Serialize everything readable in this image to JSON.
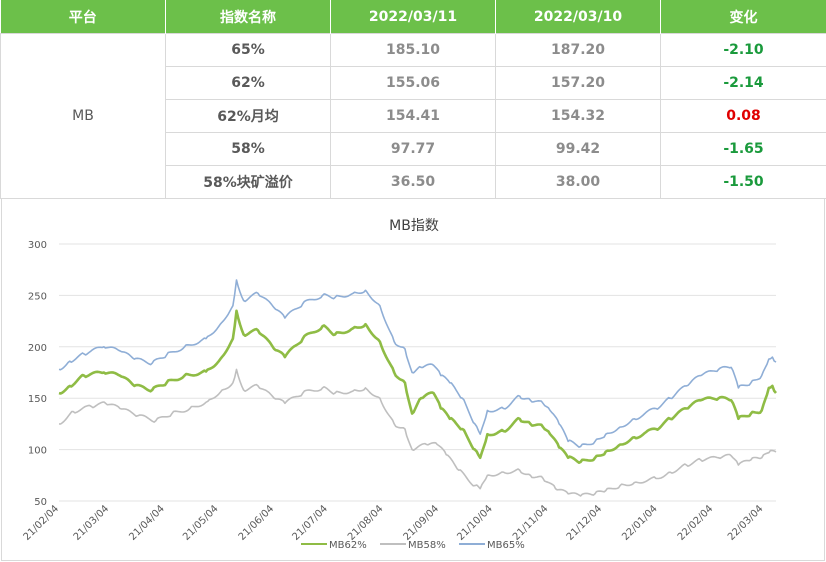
{
  "table": {
    "headers": [
      "平台",
      "指数名称",
      "2022/03/11",
      "2022/03/10",
      "变化"
    ],
    "platform": "MB",
    "rows": [
      {
        "name": "65%",
        "d1": "185.10",
        "d2": "187.20",
        "change": "-2.10",
        "sign": "neg"
      },
      {
        "name": "62%",
        "d1": "155.06",
        "d2": "157.20",
        "change": "-2.14",
        "sign": "neg"
      },
      {
        "name": "62%月均",
        "d1": "154.41",
        "d2": "154.32",
        "change": "0.08",
        "sign": "pos"
      },
      {
        "name": "58%",
        "d1": "97.77",
        "d2": "99.42",
        "change": "-1.65",
        "sign": "neg"
      },
      {
        "name": "58%块矿溢价",
        "d1": "36.50",
        "d2": "38.00",
        "change": "-1.50",
        "sign": "neg"
      }
    ]
  },
  "chart_data": {
    "type": "line",
    "title": "MB指数",
    "xlabel": "",
    "ylabel": "",
    "ylim": [
      50,
      300
    ],
    "yticks": [
      50,
      100,
      150,
      200,
      250,
      300
    ],
    "x_range": [
      "2021-02-04",
      "2022-03-11"
    ],
    "xticks": [
      "21/02/04",
      "21/03/04",
      "21/04/04",
      "21/05/04",
      "21/06/04",
      "21/07/04",
      "21/08/04",
      "21/09/04",
      "21/10/04",
      "21/11/04",
      "21/12/04",
      "22/01/04",
      "22/02/04",
      "22/03/04"
    ],
    "grid": true,
    "legend_position": "bottom",
    "series": [
      {
        "name": "MB62%",
        "color": "#8fbc45",
        "points": [
          [
            "2021-02-04",
            155
          ],
          [
            "2021-02-10",
            162
          ],
          [
            "2021-02-18",
            172
          ],
          [
            "2021-03-01",
            175
          ],
          [
            "2021-03-10",
            172
          ],
          [
            "2021-03-18",
            162
          ],
          [
            "2021-03-28",
            158
          ],
          [
            "2021-04-05",
            165
          ],
          [
            "2021-04-15",
            172
          ],
          [
            "2021-04-27",
            176
          ],
          [
            "2021-05-05",
            188
          ],
          [
            "2021-05-12",
            208
          ],
          [
            "2021-05-14",
            235
          ],
          [
            "2021-05-18",
            212
          ],
          [
            "2021-05-26",
            216
          ],
          [
            "2021-06-04",
            198
          ],
          [
            "2021-06-10",
            190
          ],
          [
            "2021-06-20",
            208
          ],
          [
            "2021-07-01",
            220
          ],
          [
            "2021-07-08",
            212
          ],
          [
            "2021-07-18",
            218
          ],
          [
            "2021-07-25",
            222
          ],
          [
            "2021-08-02",
            205
          ],
          [
            "2021-08-10",
            175
          ],
          [
            "2021-08-16",
            165
          ],
          [
            "2021-08-20",
            135
          ],
          [
            "2021-08-25",
            150
          ],
          [
            "2021-09-01",
            155
          ],
          [
            "2021-09-05",
            140
          ],
          [
            "2021-09-10",
            130
          ],
          [
            "2021-09-17",
            120
          ],
          [
            "2021-09-24",
            100
          ],
          [
            "2021-09-27",
            92
          ],
          [
            "2021-10-01",
            115
          ],
          [
            "2021-10-10",
            118
          ],
          [
            "2021-10-19",
            130
          ],
          [
            "2021-10-25",
            125
          ],
          [
            "2021-11-01",
            122
          ],
          [
            "2021-11-05",
            115
          ],
          [
            "2021-11-10",
            102
          ],
          [
            "2021-11-15",
            92
          ],
          [
            "2021-11-22",
            88
          ],
          [
            "2021-11-30",
            92
          ],
          [
            "2021-12-06",
            98
          ],
          [
            "2021-12-14",
            105
          ],
          [
            "2021-12-22",
            112
          ],
          [
            "2022-01-03",
            120
          ],
          [
            "2022-01-11",
            130
          ],
          [
            "2022-01-20",
            140
          ],
          [
            "2022-01-28",
            148
          ],
          [
            "2022-02-07",
            150
          ],
          [
            "2022-02-14",
            148
          ],
          [
            "2022-02-18",
            130
          ],
          [
            "2022-02-25",
            135
          ],
          [
            "2022-03-03",
            138
          ],
          [
            "2022-03-07",
            160
          ],
          [
            "2022-03-09",
            162
          ],
          [
            "2022-03-11",
            155.06
          ]
        ]
      },
      {
        "name": "MB58%",
        "color": "#bfbfbf",
        "points": [
          [
            "2021-02-04",
            125
          ],
          [
            "2021-02-12",
            137
          ],
          [
            "2021-02-22",
            142
          ],
          [
            "2021-03-02",
            145
          ],
          [
            "2021-03-10",
            140
          ],
          [
            "2021-03-20",
            133
          ],
          [
            "2021-03-30",
            128
          ],
          [
            "2021-04-08",
            135
          ],
          [
            "2021-04-18",
            140
          ],
          [
            "2021-04-28",
            147
          ],
          [
            "2021-05-06",
            158
          ],
          [
            "2021-05-12",
            165
          ],
          [
            "2021-05-14",
            178
          ],
          [
            "2021-05-18",
            158
          ],
          [
            "2021-05-26",
            162
          ],
          [
            "2021-06-04",
            150
          ],
          [
            "2021-06-10",
            145
          ],
          [
            "2021-06-20",
            155
          ],
          [
            "2021-07-01",
            160
          ],
          [
            "2021-07-08",
            155
          ],
          [
            "2021-07-18",
            157
          ],
          [
            "2021-07-25",
            160
          ],
          [
            "2021-08-02",
            150
          ],
          [
            "2021-08-10",
            125
          ],
          [
            "2021-08-16",
            120
          ],
          [
            "2021-08-20",
            100
          ],
          [
            "2021-08-28",
            105
          ],
          [
            "2021-09-03",
            105
          ],
          [
            "2021-09-08",
            95
          ],
          [
            "2021-09-15",
            80
          ],
          [
            "2021-09-24",
            65
          ],
          [
            "2021-09-27",
            62
          ],
          [
            "2021-10-01",
            75
          ],
          [
            "2021-10-10",
            78
          ],
          [
            "2021-10-19",
            80
          ],
          [
            "2021-10-25",
            75
          ],
          [
            "2021-11-01",
            72
          ],
          [
            "2021-11-08",
            62
          ],
          [
            "2021-11-15",
            57
          ],
          [
            "2021-11-22",
            55
          ],
          [
            "2021-11-30",
            57
          ],
          [
            "2021-12-06",
            60
          ],
          [
            "2021-12-14",
            65
          ],
          [
            "2021-12-22",
            68
          ],
          [
            "2022-01-03",
            72
          ],
          [
            "2022-01-11",
            78
          ],
          [
            "2022-01-20",
            85
          ],
          [
            "2022-01-28",
            90
          ],
          [
            "2022-02-07",
            92
          ],
          [
            "2022-02-14",
            94
          ],
          [
            "2022-02-18",
            85
          ],
          [
            "2022-02-25",
            90
          ],
          [
            "2022-03-03",
            92
          ],
          [
            "2022-03-07",
            97
          ],
          [
            "2022-03-09",
            99
          ],
          [
            "2022-03-11",
            97.77
          ]
        ]
      },
      {
        "name": "MB65%",
        "color": "#8faed6",
        "points": [
          [
            "2021-02-04",
            178
          ],
          [
            "2021-02-10",
            186
          ],
          [
            "2021-02-18",
            193
          ],
          [
            "2021-03-01",
            200
          ],
          [
            "2021-03-10",
            196
          ],
          [
            "2021-03-18",
            188
          ],
          [
            "2021-03-28",
            184
          ],
          [
            "2021-04-05",
            192
          ],
          [
            "2021-04-15",
            200
          ],
          [
            "2021-04-27",
            208
          ],
          [
            "2021-05-05",
            222
          ],
          [
            "2021-05-12",
            240
          ],
          [
            "2021-05-14",
            265
          ],
          [
            "2021-05-18",
            245
          ],
          [
            "2021-05-26",
            252
          ],
          [
            "2021-06-04",
            238
          ],
          [
            "2021-06-10",
            228
          ],
          [
            "2021-06-20",
            242
          ],
          [
            "2021-07-01",
            250
          ],
          [
            "2021-07-08",
            248
          ],
          [
            "2021-07-18",
            252
          ],
          [
            "2021-07-25",
            255
          ],
          [
            "2021-08-02",
            240
          ],
          [
            "2021-08-10",
            205
          ],
          [
            "2021-08-16",
            198
          ],
          [
            "2021-08-20",
            175
          ],
          [
            "2021-08-25",
            180
          ],
          [
            "2021-09-01",
            182
          ],
          [
            "2021-09-05",
            172
          ],
          [
            "2021-09-10",
            165
          ],
          [
            "2021-09-17",
            150
          ],
          [
            "2021-09-24",
            125
          ],
          [
            "2021-09-27",
            115
          ],
          [
            "2021-10-01",
            138
          ],
          [
            "2021-10-10",
            140
          ],
          [
            "2021-10-19",
            152
          ],
          [
            "2021-10-25",
            148
          ],
          [
            "2021-11-01",
            145
          ],
          [
            "2021-11-05",
            138
          ],
          [
            "2021-11-10",
            125
          ],
          [
            "2021-11-15",
            108
          ],
          [
            "2021-11-22",
            103
          ],
          [
            "2021-11-30",
            108
          ],
          [
            "2021-12-06",
            115
          ],
          [
            "2021-12-14",
            122
          ],
          [
            "2021-12-22",
            130
          ],
          [
            "2022-01-03",
            140
          ],
          [
            "2022-01-11",
            150
          ],
          [
            "2022-01-20",
            162
          ],
          [
            "2022-01-28",
            172
          ],
          [
            "2022-02-07",
            178
          ],
          [
            "2022-02-14",
            180
          ],
          [
            "2022-02-18",
            160
          ],
          [
            "2022-02-25",
            165
          ],
          [
            "2022-03-03",
            172
          ],
          [
            "2022-03-07",
            188
          ],
          [
            "2022-03-09",
            190
          ],
          [
            "2022-03-11",
            185.1
          ]
        ]
      }
    ]
  }
}
